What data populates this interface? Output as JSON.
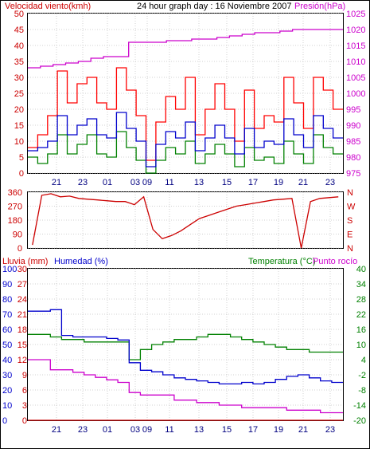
{
  "chart_data": [
    {
      "type": "line",
      "panel": "top",
      "title": "24 hour graph day : 16 Noviembre 2007",
      "left_axis_label": "Velocidad viento(kmh)",
      "right_axis_label": "Presión(hPa)",
      "x_ticks": [
        "21",
        "23",
        "01",
        "03",
        "09",
        "11",
        "13",
        "15",
        "17",
        "19",
        "21",
        "23"
      ],
      "y_left_ticks": [
        "0",
        "5",
        "10",
        "15",
        "20",
        "25",
        "30",
        "35",
        "40",
        "45",
        "50"
      ],
      "y_left_range": [
        0,
        50
      ],
      "y_right_ticks": [
        "975",
        "980",
        "985",
        "990",
        "995",
        "1000",
        "1005",
        "1010",
        "1015",
        "1020",
        "1025"
      ],
      "y_right_range": [
        975,
        1025
      ],
      "colors": {
        "gust": "#ff0000",
        "wind": "#0000cc",
        "min": "#008000",
        "pressure": "#cc00cc"
      },
      "pressure": [
        1008,
        1008.5,
        1009,
        1009.5,
        1010,
        1011,
        1011.5,
        1011.5,
        1016,
        1016,
        1016,
        1016.5,
        1016.5,
        1017,
        1017,
        1017.5,
        1018,
        1018.5,
        1019,
        1019,
        1019.5,
        1020,
        1020,
        1020,
        1020
      ],
      "gust_kmh": [
        8,
        12,
        18,
        32,
        22,
        28,
        30,
        22,
        20,
        33,
        26,
        18,
        4,
        16,
        24,
        20,
        30,
        12,
        20,
        28,
        20,
        10,
        26,
        14,
        18,
        16,
        30,
        22,
        14,
        30,
        26,
        20
      ],
      "wind_kmh": [
        7,
        8,
        10,
        18,
        12,
        15,
        17,
        12,
        11,
        19,
        14,
        10,
        2,
        9,
        13,
        11,
        16,
        7,
        11,
        15,
        11,
        6,
        14,
        8,
        10,
        9,
        17,
        12,
        8,
        18,
        14,
        11
      ],
      "min_kmh": [
        5,
        3,
        6,
        12,
        6,
        9,
        12,
        6,
        5,
        13,
        8,
        4,
        0,
        4,
        8,
        6,
        10,
        3,
        6,
        9,
        6,
        2,
        8,
        4,
        5,
        3,
        10,
        6,
        3,
        12,
        8,
        6
      ]
    },
    {
      "type": "scatter",
      "panel": "middle",
      "y_ticks": [
        "360",
        "270",
        "180",
        "90",
        "0"
      ],
      "y_range": [
        0,
        360
      ],
      "right_labels": [
        "N",
        "W",
        "S",
        "E",
        "N"
      ],
      "color": "#cc0000",
      "direction_deg": [
        20,
        340,
        350,
        330,
        335,
        320,
        315,
        310,
        305,
        300,
        300,
        280,
        330,
        120,
        60,
        80,
        110,
        150,
        190,
        210,
        230,
        250,
        270,
        280,
        290,
        300,
        310,
        315,
        320,
        0,
        300,
        320,
        325,
        330
      ]
    },
    {
      "type": "line",
      "panel": "bottom",
      "left_label_rain": "Lluvia (mm)",
      "left_label_humidity": "Humedad (%)",
      "right_label_temp": "Temperatura (°C)",
      "right_label_dew": "Punto rocío",
      "x_ticks": [
        "21",
        "23",
        "01",
        "03",
        "09",
        "11",
        "13",
        "15",
        "17",
        "19",
        "21",
        "23"
      ],
      "y_humidity_ticks": [
        "100",
        "90",
        "80",
        "70",
        "60",
        "50",
        "40",
        "30",
        "20",
        "10",
        "0"
      ],
      "y_rain_ticks": [
        "30",
        "27",
        "24",
        "21",
        "18",
        "15",
        "12",
        "9",
        "6",
        "3",
        "0"
      ],
      "y_temp_ticks": [
        "40",
        "34",
        "28",
        "22",
        "16",
        "10",
        "4",
        "-2",
        "-8",
        "-14",
        "-20"
      ],
      "humidity_pct": [
        72,
        72,
        73,
        56,
        55,
        55,
        55,
        54,
        53,
        38,
        33,
        32,
        30,
        28,
        27,
        26,
        25,
        24,
        24,
        25,
        24,
        25,
        27,
        29,
        30,
        28,
        26,
        25
      ],
      "temperature_c": [
        14,
        14,
        13,
        12,
        12,
        11,
        11,
        11,
        11,
        4,
        8,
        10,
        11,
        12,
        12,
        13,
        14,
        14,
        13,
        12,
        11,
        10,
        9,
        8,
        8,
        7,
        7,
        7
      ],
      "dew_point_c": [
        4,
        4,
        0,
        0,
        -1,
        -2,
        -3,
        -4,
        -5,
        -9,
        -10,
        -10,
        -10,
        -12,
        -12,
        -13,
        -13,
        -14,
        -14,
        -15,
        -15,
        -15,
        -15,
        -16,
        -16,
        -16,
        -17,
        -17
      ],
      "rain_mm": [
        0,
        0,
        0,
        0,
        0,
        0,
        0,
        0,
        0,
        0,
        0,
        0,
        0,
        0,
        0,
        0,
        0,
        0,
        0,
        0,
        0,
        0,
        0,
        0,
        0,
        0,
        0,
        0
      ]
    }
  ]
}
